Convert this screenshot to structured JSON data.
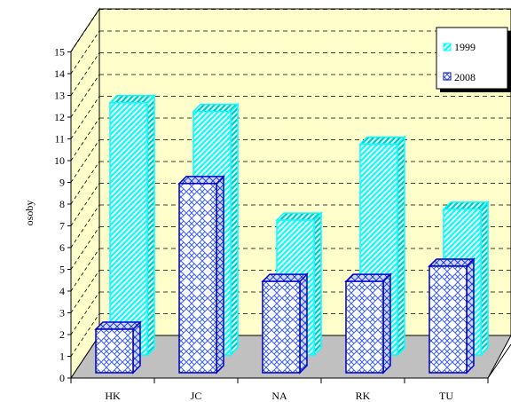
{
  "chart_data": {
    "type": "bar",
    "title": "",
    "xlabel": "",
    "ylabel": "osoby",
    "ylim": [
      0,
      15
    ],
    "y_ticks": [
      0,
      1,
      2,
      3,
      4,
      5,
      6,
      7,
      8,
      9,
      10,
      11,
      12,
      13,
      14,
      15
    ],
    "categories": [
      "HK",
      "JC",
      "NA",
      "RK",
      "TU"
    ],
    "series": [
      {
        "name": "1999",
        "values": [
          11.6,
          11.2,
          6.2,
          9.7,
          6.7
        ],
        "color": "#00ffff",
        "pattern": "diagonal-stripes"
      },
      {
        "name": "2008",
        "values": [
          2.0,
          8.7,
          4.2,
          4.2,
          4.9
        ],
        "color": "#0000cc",
        "pattern": "lattice"
      }
    ],
    "grid": true,
    "gridlines": "dashed",
    "legend_position": "top-right",
    "style": "3d-clustered-depth",
    "colors": {
      "wall": "#ffffcc",
      "floor": "#c0c0c0",
      "grid": "#000000"
    }
  }
}
